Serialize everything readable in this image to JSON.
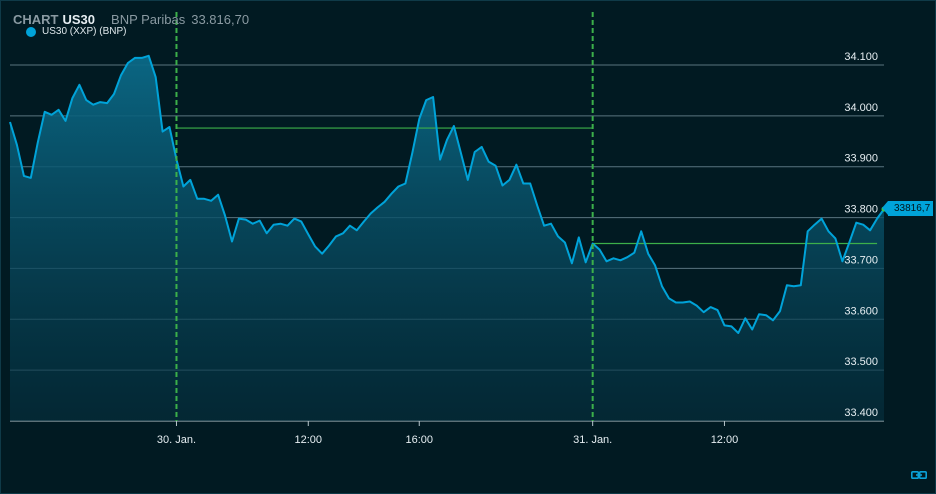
{
  "header": {
    "chart_label": "CHART",
    "symbol": "US30",
    "source": "BNP Paribas",
    "last_value": "33.816,70"
  },
  "legend": {
    "series_name": "US30 (XXP) (BNP)",
    "color": "#00a3d9"
  },
  "last_price_badge": "33816,7",
  "icons": {
    "bottom_right": "link-icon"
  },
  "chart_data": {
    "type": "area",
    "ylim": [
      33400,
      34100
    ],
    "y_ticks": [
      {
        "value": 34100,
        "label": "34.100"
      },
      {
        "value": 34000,
        "label": "34.000"
      },
      {
        "value": 33900,
        "label": "33.900"
      },
      {
        "value": 33800,
        "label": "33.800"
      },
      {
        "value": 33700,
        "label": "33.700"
      },
      {
        "value": 33600,
        "label": "33.600"
      },
      {
        "value": 33500,
        "label": "33.500"
      },
      {
        "value": 33400,
        "label": "33.400"
      }
    ],
    "x_ticks": [
      {
        "index": 24,
        "label": "30. Jan."
      },
      {
        "index": 43,
        "label": "12:00"
      },
      {
        "index": 59,
        "label": "16:00"
      },
      {
        "index": 84,
        "label": "31. Jan."
      },
      {
        "index": 103,
        "label": "12:00"
      }
    ],
    "session_separators": [
      24,
      84
    ],
    "reference_levels": [
      {
        "from": 24,
        "to": 84,
        "value": 33976
      },
      {
        "from": 84,
        "to": 125,
        "value": 33749
      }
    ],
    "grid": true,
    "line_color": "#00a3d9",
    "ref_color": "#3cb04a",
    "values": [
      33988,
      33943,
      33882,
      33878,
      33947,
      34008,
      34002,
      34012,
      33990,
      34035,
      34061,
      34031,
      34022,
      34027,
      34025,
      34043,
      34080,
      34104,
      34114,
      34114,
      34118,
      34076,
      33969,
      33978,
      33914,
      33861,
      33874,
      33837,
      33837,
      33833,
      33845,
      33804,
      33753,
      33798,
      33796,
      33788,
      33794,
      33769,
      33786,
      33788,
      33784,
      33798,
      33792,
      33767,
      33743,
      33729,
      33745,
      33763,
      33769,
      33784,
      33775,
      33792,
      33808,
      33820,
      33831,
      33847,
      33861,
      33867,
      33927,
      33994,
      34031,
      34037,
      33914,
      33953,
      33980,
      33927,
      33874,
      33929,
      33939,
      33910,
      33902,
      33863,
      33874,
      33904,
      33867,
      33867,
      33824,
      33784,
      33788,
      33763,
      33751,
      33710,
      33761,
      33712,
      33749,
      33737,
      33714,
      33720,
      33716,
      33722,
      33731,
      33773,
      33729,
      33706,
      33665,
      33641,
      33633,
      33633,
      33635,
      33627,
      33614,
      33624,
      33618,
      33588,
      33586,
      33573,
      33602,
      33580,
      33610,
      33608,
      33598,
      33616,
      33667,
      33665,
      33667,
      33773,
      33786,
      33798,
      33773,
      33759,
      33714,
      33751,
      33790,
      33786,
      33775,
      33798,
      33816.7
    ]
  }
}
